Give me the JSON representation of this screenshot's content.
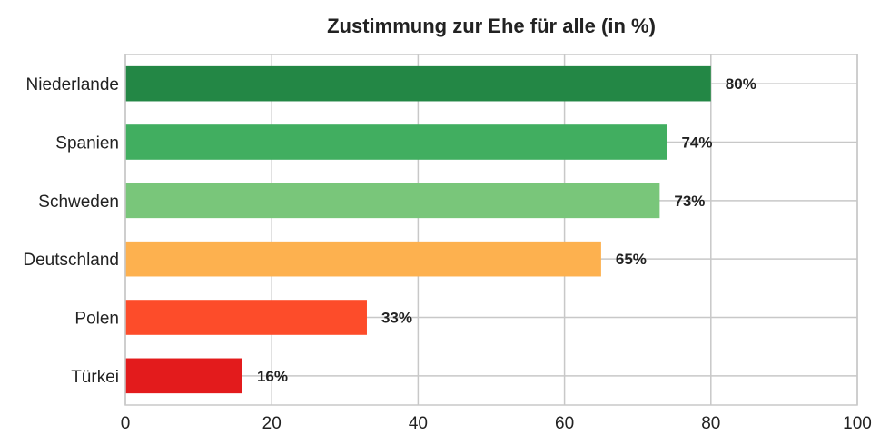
{
  "chart_data": {
    "type": "bar",
    "orientation": "horizontal",
    "title": "Zustimmung zur Ehe für alle (in %)",
    "xlabel": "",
    "ylabel": "",
    "xlim": [
      0,
      100
    ],
    "x_ticks": [
      "0",
      "20",
      "40",
      "60",
      "80",
      "100"
    ],
    "grid": true,
    "categories": [
      "Niederlande",
      "Spanien",
      "Schweden",
      "Deutschland",
      "Polen",
      "Türkei"
    ],
    "values": [
      80,
      74,
      73,
      65,
      33,
      16
    ],
    "value_labels": [
      "80%",
      "74%",
      "73%",
      "65%",
      "33%",
      "16%"
    ],
    "colors": [
      "#238745",
      "#41ae60",
      "#79c67a",
      "#fdb14f",
      "#fd4c2a",
      "#e31b1c"
    ]
  }
}
